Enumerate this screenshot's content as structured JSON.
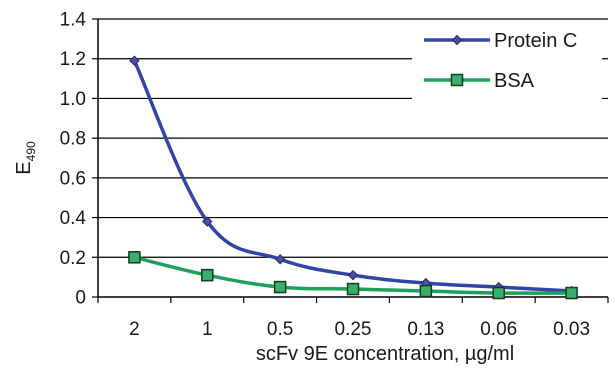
{
  "chart_data": {
    "type": "line",
    "categories": [
      "2",
      "1",
      "0.5",
      "0.25",
      "0.13",
      "0.06",
      "0.03"
    ],
    "series": [
      {
        "name": "Protein C",
        "values": [
          1.19,
          0.38,
          0.19,
          0.11,
          0.07,
          0.05,
          0.03
        ],
        "color": "#3344a8",
        "marker": "diamond"
      },
      {
        "name": "BSA",
        "values": [
          0.2,
          0.11,
          0.05,
          0.04,
          0.03,
          0.02,
          0.02
        ],
        "color": "#1fa05a",
        "marker": "square"
      }
    ],
    "xlabel": "scFv 9E concentration, µg/ml",
    "ylabel": {
      "base": "E",
      "subscript": "490"
    },
    "ylim": [
      0,
      1.4
    ],
    "yticks": [
      "0",
      "0.2",
      "0.4",
      "0.6",
      "0.8",
      "1.0",
      "1.2",
      "1.4"
    ],
    "grid": "horizontal",
    "legend_position": "top-right"
  }
}
